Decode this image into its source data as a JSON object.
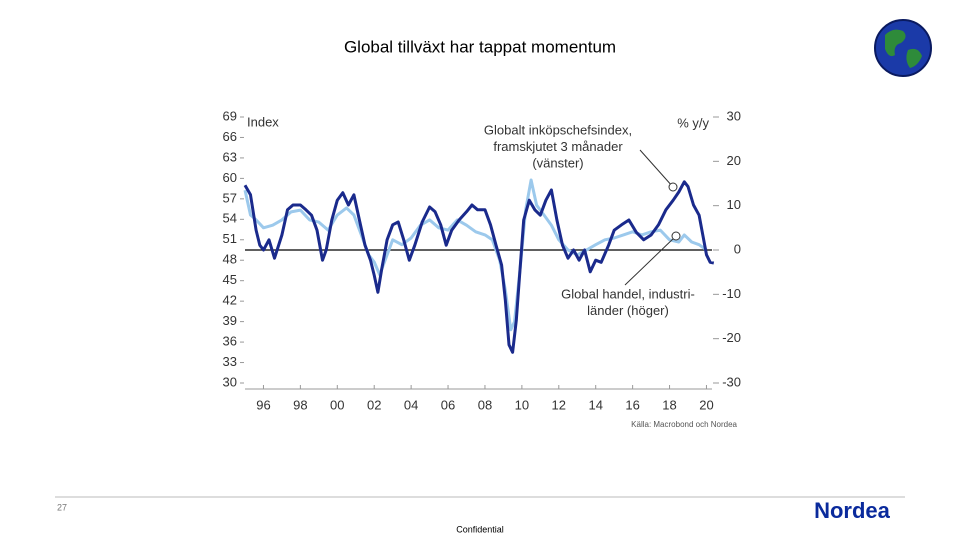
{
  "slide": {
    "title": "Global tillväxt har tappat momentum",
    "page_number": "27",
    "footer": "Confidential",
    "logo": "Nordea"
  },
  "chart_data": {
    "type": "line",
    "y_label": "Index",
    "y2_label": "% y/y",
    "source": "Källa: Macrobond och Nordea",
    "annotations": [
      {
        "lines": [
          "Globalt inköpschefsindex,",
          "framskjutet 3 månader",
          "(vänster)"
        ]
      },
      {
        "lines": [
          "Global handel, industri-",
          "länder (höger)"
        ]
      }
    ],
    "xlim": [
      1995,
      2020.3
    ],
    "xticks": [
      {
        "value": 1996,
        "label": "96"
      },
      {
        "value": 1998,
        "label": "98"
      },
      {
        "value": 2000,
        "label": "00"
      },
      {
        "value": 2002,
        "label": "02"
      },
      {
        "value": 2004,
        "label": "04"
      },
      {
        "value": 2006,
        "label": "06"
      },
      {
        "value": 2008,
        "label": "08"
      },
      {
        "value": 2010,
        "label": "10"
      },
      {
        "value": 2012,
        "label": "12"
      },
      {
        "value": 2014,
        "label": "14"
      },
      {
        "value": 2016,
        "label": "16"
      },
      {
        "value": 2018,
        "label": "18"
      },
      {
        "value": 2020,
        "label": "20"
      }
    ],
    "ylim": [
      30,
      69
    ],
    "yticks": [
      30,
      33,
      36,
      39,
      42,
      45,
      48,
      51,
      54,
      57,
      60,
      63,
      66,
      69
    ],
    "y2lim": [
      -30,
      30
    ],
    "y2ticks": [
      -30,
      -20,
      -10,
      0,
      10,
      20,
      30
    ],
    "series": [
      {
        "color": "#1a2a8c",
        "x": [
          1995.0,
          1995.3,
          1995.6,
          1995.8,
          1996.0,
          1996.3,
          1996.6,
          1997.0,
          1997.3,
          1997.6,
          1998.0,
          1998.3,
          1998.6,
          1998.9,
          1999.2,
          1999.4,
          1999.7,
          2000.0,
          2000.3,
          2000.6,
          2000.9,
          2001.2,
          2001.5,
          2001.8,
          2002.0,
          2002.2,
          2002.4,
          2002.7,
          2003.0,
          2003.3,
          2003.6,
          2003.9,
          2004.2,
          2004.6,
          2005.0,
          2005.3,
          2005.6,
          2005.9,
          2006.2,
          2006.6,
          2007.0,
          2007.3,
          2007.6,
          2008.0,
          2008.3,
          2008.6,
          2008.9,
          2009.1,
          2009.3,
          2009.5,
          2009.7,
          2009.9,
          2010.1,
          2010.4,
          2010.7,
          2011.0,
          2011.3,
          2011.6,
          2011.9,
          2012.2,
          2012.5,
          2012.8,
          2013.1,
          2013.4,
          2013.7,
          2014.0,
          2014.3,
          2014.7,
          2015.0,
          2015.4,
          2015.8,
          2016.2,
          2016.6,
          2017.0,
          2017.4,
          2017.8,
          2018.2,
          2018.5,
          2018.8,
          2019.0,
          2019.3,
          2019.6,
          2019.8,
          2020.0,
          2020.2,
          2020.4
        ],
        "values": [
          59.0,
          57.6,
          52.4,
          50.2,
          49.5,
          51.0,
          48.3,
          51.7,
          55.4,
          56.1,
          56.1,
          55.4,
          54.6,
          52.4,
          48.0,
          49.5,
          53.9,
          56.8,
          57.9,
          56.1,
          57.6,
          53.9,
          50.2,
          48.0,
          45.8,
          43.3,
          46.6,
          51.0,
          53.2,
          53.6,
          51.0,
          48.0,
          50.2,
          53.6,
          55.8,
          55.1,
          53.2,
          50.2,
          52.4,
          53.9,
          55.1,
          56.1,
          55.4,
          55.4,
          53.2,
          50.2,
          47.3,
          42.2,
          35.6,
          34.5,
          39.2,
          46.6,
          53.9,
          56.8,
          55.4,
          54.6,
          56.8,
          58.3,
          53.9,
          50.2,
          48.3,
          49.5,
          48.0,
          49.5,
          46.3,
          48.0,
          47.7,
          50.2,
          52.4,
          53.2,
          53.9,
          52.1,
          51.0,
          51.7,
          53.2,
          55.4,
          56.8,
          58.0,
          59.5,
          58.8,
          56.1,
          54.6,
          51.7,
          48.8,
          47.7,
          47.6
        ]
      },
      {
        "color": "#9cc9ec",
        "axis": "y2",
        "x": [
          1995.0,
          1995.3,
          1995.6,
          1996.0,
          1996.5,
          1997.0,
          1997.5,
          1998.0,
          1998.5,
          1999.0,
          1999.5,
          2000.0,
          2000.5,
          2000.9,
          2001.3,
          2001.7,
          2002.0,
          2002.3,
          2002.7,
          2003.0,
          2003.5,
          2004.0,
          2004.5,
          2005.0,
          2005.5,
          2006.0,
          2006.5,
          2007.0,
          2007.5,
          2008.0,
          2008.4,
          2008.8,
          2009.1,
          2009.4,
          2009.6,
          2009.9,
          2010.2,
          2010.5,
          2010.8,
          2011.2,
          2011.6,
          2012.0,
          2012.5,
          2013.0,
          2013.5,
          2014.0,
          2014.5,
          2015.0,
          2015.5,
          2016.0,
          2016.5,
          2017.0,
          2017.5,
          2018.0,
          2018.5,
          2018.8,
          2019.2,
          2019.6,
          2020.0
        ],
        "values": [
          13.5,
          7.9,
          6.8,
          5.0,
          5.6,
          6.8,
          8.6,
          9.0,
          6.8,
          6.3,
          4.5,
          7.9,
          9.5,
          7.9,
          3.4,
          -1.1,
          -2.7,
          -5.6,
          -1.1,
          2.3,
          1.2,
          2.7,
          5.6,
          6.8,
          5.0,
          4.5,
          6.8,
          5.6,
          4.1,
          3.4,
          2.3,
          -2.3,
          -9.0,
          -18.0,
          -16.2,
          -4.5,
          9.0,
          15.8,
          10.1,
          7.9,
          5.6,
          2.3,
          0.0,
          -1.1,
          0.0,
          1.2,
          2.3,
          2.7,
          3.4,
          4.1,
          3.4,
          4.1,
          4.5,
          2.3,
          1.8,
          3.4,
          1.8,
          1.2,
          0.0
        ]
      }
    ]
  }
}
